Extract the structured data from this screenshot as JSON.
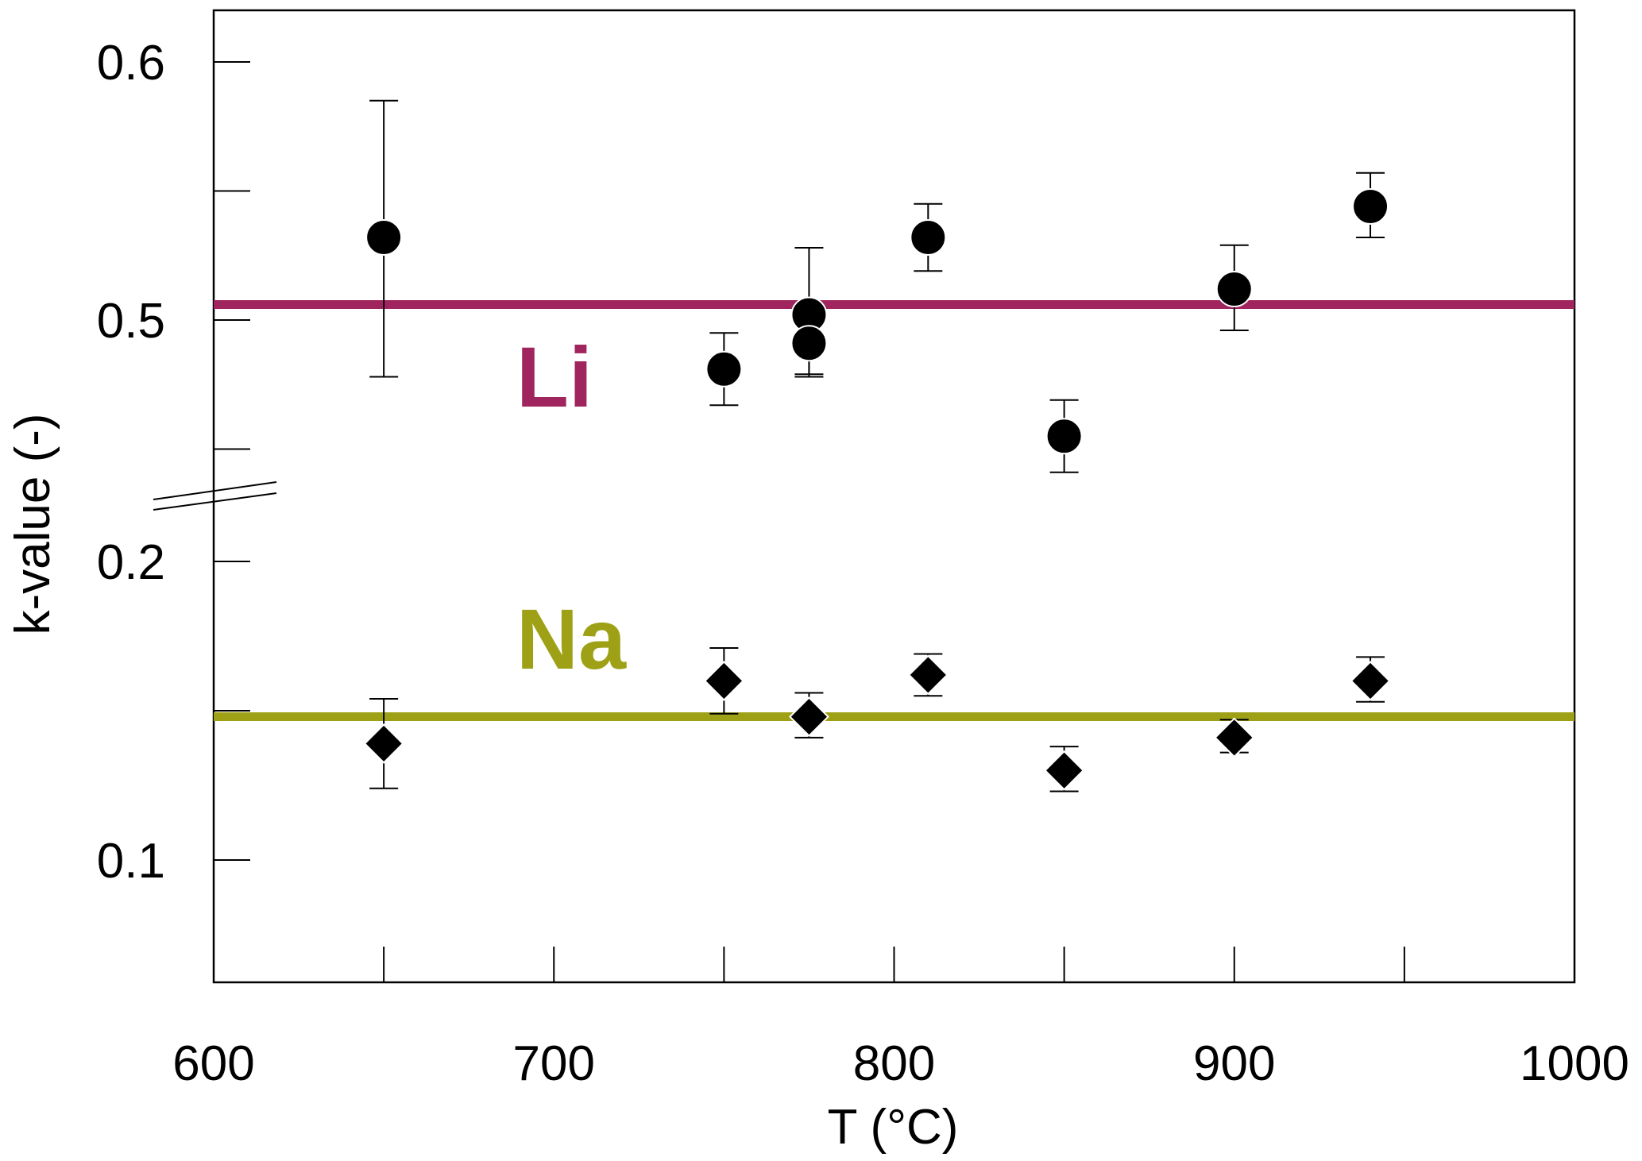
{
  "chart_data": {
    "type": "scatter",
    "title": "",
    "xlabel": "T (°C)",
    "ylabel": "k-value (-)",
    "xlim": [
      600,
      1000
    ],
    "x_ticks": [
      600,
      700,
      800,
      900,
      1000
    ],
    "y_axis": "broken",
    "y_upper_ticks": [
      0.5,
      0.6
    ],
    "y_lower_ticks": [
      0.1,
      0.2
    ],
    "grid": false,
    "series": [
      {
        "name": "Li",
        "marker": "circle",
        "points": [
          {
            "x": 650,
            "y": 0.532,
            "err_low": 0.478,
            "err_high": 0.585
          },
          {
            "x": 750,
            "y": 0.481,
            "err_low": 0.467,
            "err_high": 0.495
          },
          {
            "x": 775,
            "y": 0.502,
            "err_low": 0.478,
            "err_high": 0.528
          },
          {
            "x": 775,
            "y": 0.491,
            "err_low": 0.479,
            "err_high": 0.503
          },
          {
            "x": 810,
            "y": 0.532,
            "err_low": 0.519,
            "err_high": 0.545
          },
          {
            "x": 850,
            "y": 0.455,
            "err_low": 0.441,
            "err_high": 0.469
          },
          {
            "x": 900,
            "y": 0.512,
            "err_low": 0.496,
            "err_high": 0.529
          },
          {
            "x": 940,
            "y": 0.544,
            "err_low": 0.532,
            "err_high": 0.557
          }
        ],
        "mean_line": 0.506,
        "color": "#a0245e"
      },
      {
        "name": "Na",
        "marker": "diamond",
        "points": [
          {
            "x": 650,
            "y": 0.139,
            "err_low": 0.124,
            "err_high": 0.154
          },
          {
            "x": 750,
            "y": 0.16,
            "err_low": 0.149,
            "err_high": 0.171
          },
          {
            "x": 775,
            "y": 0.148,
            "err_low": 0.141,
            "err_high": 0.156
          },
          {
            "x": 810,
            "y": 0.162,
            "err_low": 0.155,
            "err_high": 0.169
          },
          {
            "x": 850,
            "y": 0.13,
            "err_low": 0.123,
            "err_high": 0.138
          },
          {
            "x": 900,
            "y": 0.141,
            "err_low": 0.136,
            "err_high": 0.147
          },
          {
            "x": 940,
            "y": 0.16,
            "err_low": 0.153,
            "err_high": 0.168
          }
        ],
        "mean_line": 0.148,
        "color": "#9ea116"
      }
    ]
  }
}
